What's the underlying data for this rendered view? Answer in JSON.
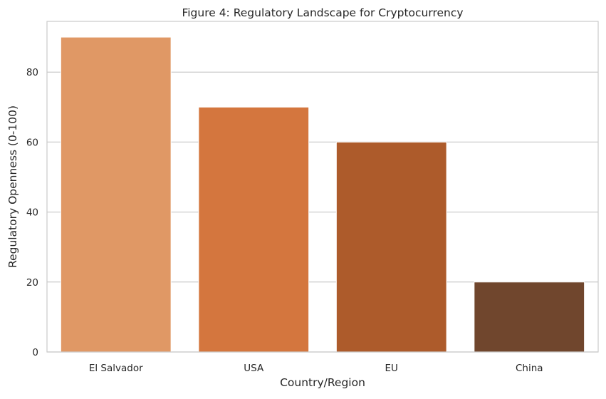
{
  "chart_data": {
    "type": "bar",
    "title": "Figure 4: Regulatory Landscape for Cryptocurrency",
    "xlabel": "Country/Region",
    "ylabel": "Regulatory Openness (0-100)",
    "categories": [
      "El Salvador",
      "USA",
      "EU",
      "China"
    ],
    "values": [
      90,
      70,
      60,
      20
    ],
    "colors": [
      "#e09865",
      "#d4763e",
      "#ad5b2b",
      "#70462d"
    ],
    "ylim": [
      0,
      94.5
    ],
    "yticks": [
      0,
      20,
      40,
      60,
      80
    ],
    "grid": true,
    "legend": "none"
  }
}
